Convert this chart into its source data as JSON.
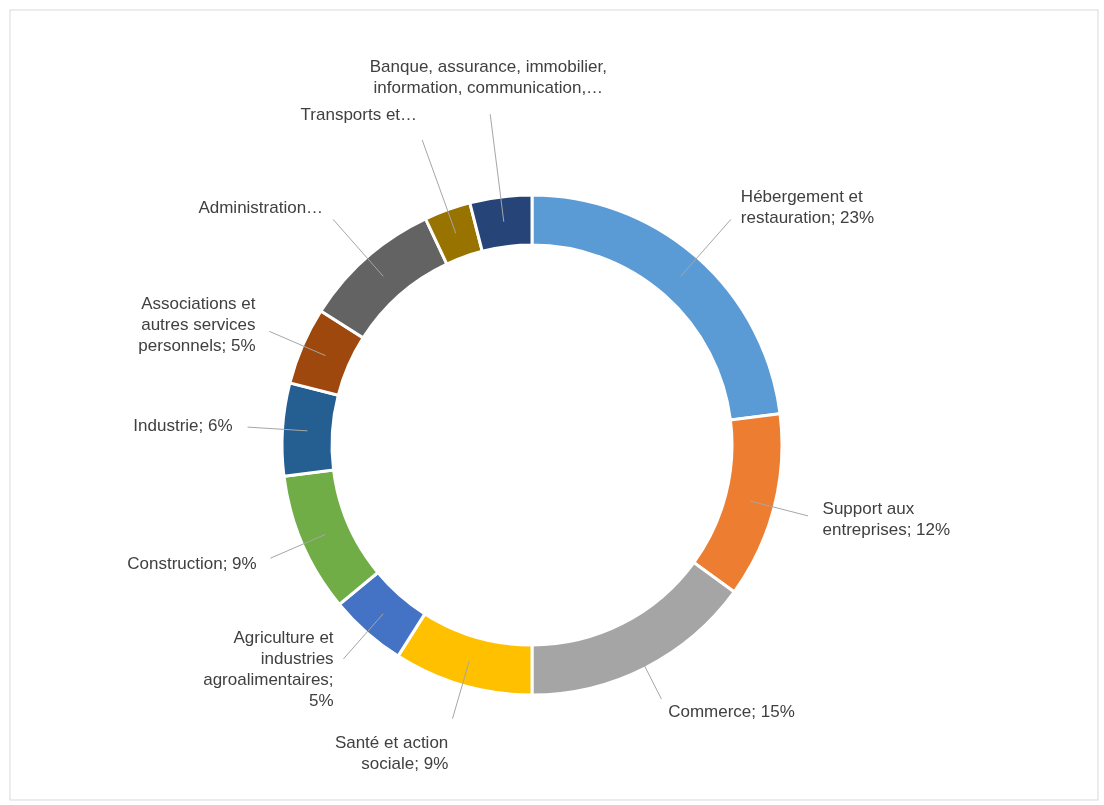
{
  "chart_data": {
    "type": "donut",
    "categories": [
      "Hébergement et restauration; 23%",
      "Support aux entreprises; 12%",
      "Commerce; 15%",
      "Santé et action sociale; 9%",
      "Agriculture et industries agroalimentaires; 5%",
      "Construction; 9%",
      "Industrie; 6%",
      "Associations et autres services personnels; 5%",
      "Administration…",
      "Transports et…",
      "Banque, assurance, immobilier, information, communication,…"
    ],
    "values": [
      23,
      12,
      15,
      9,
      5,
      9,
      6,
      5,
      9,
      3,
      4
    ],
    "colors": [
      "#5b9bd5",
      "#ed7d31",
      "#a5a5a5",
      "#ffc000",
      "#4472c4",
      "#70ad47",
      "#255e91",
      "#9e480e",
      "#636363",
      "#997300",
      "#264478"
    ]
  }
}
